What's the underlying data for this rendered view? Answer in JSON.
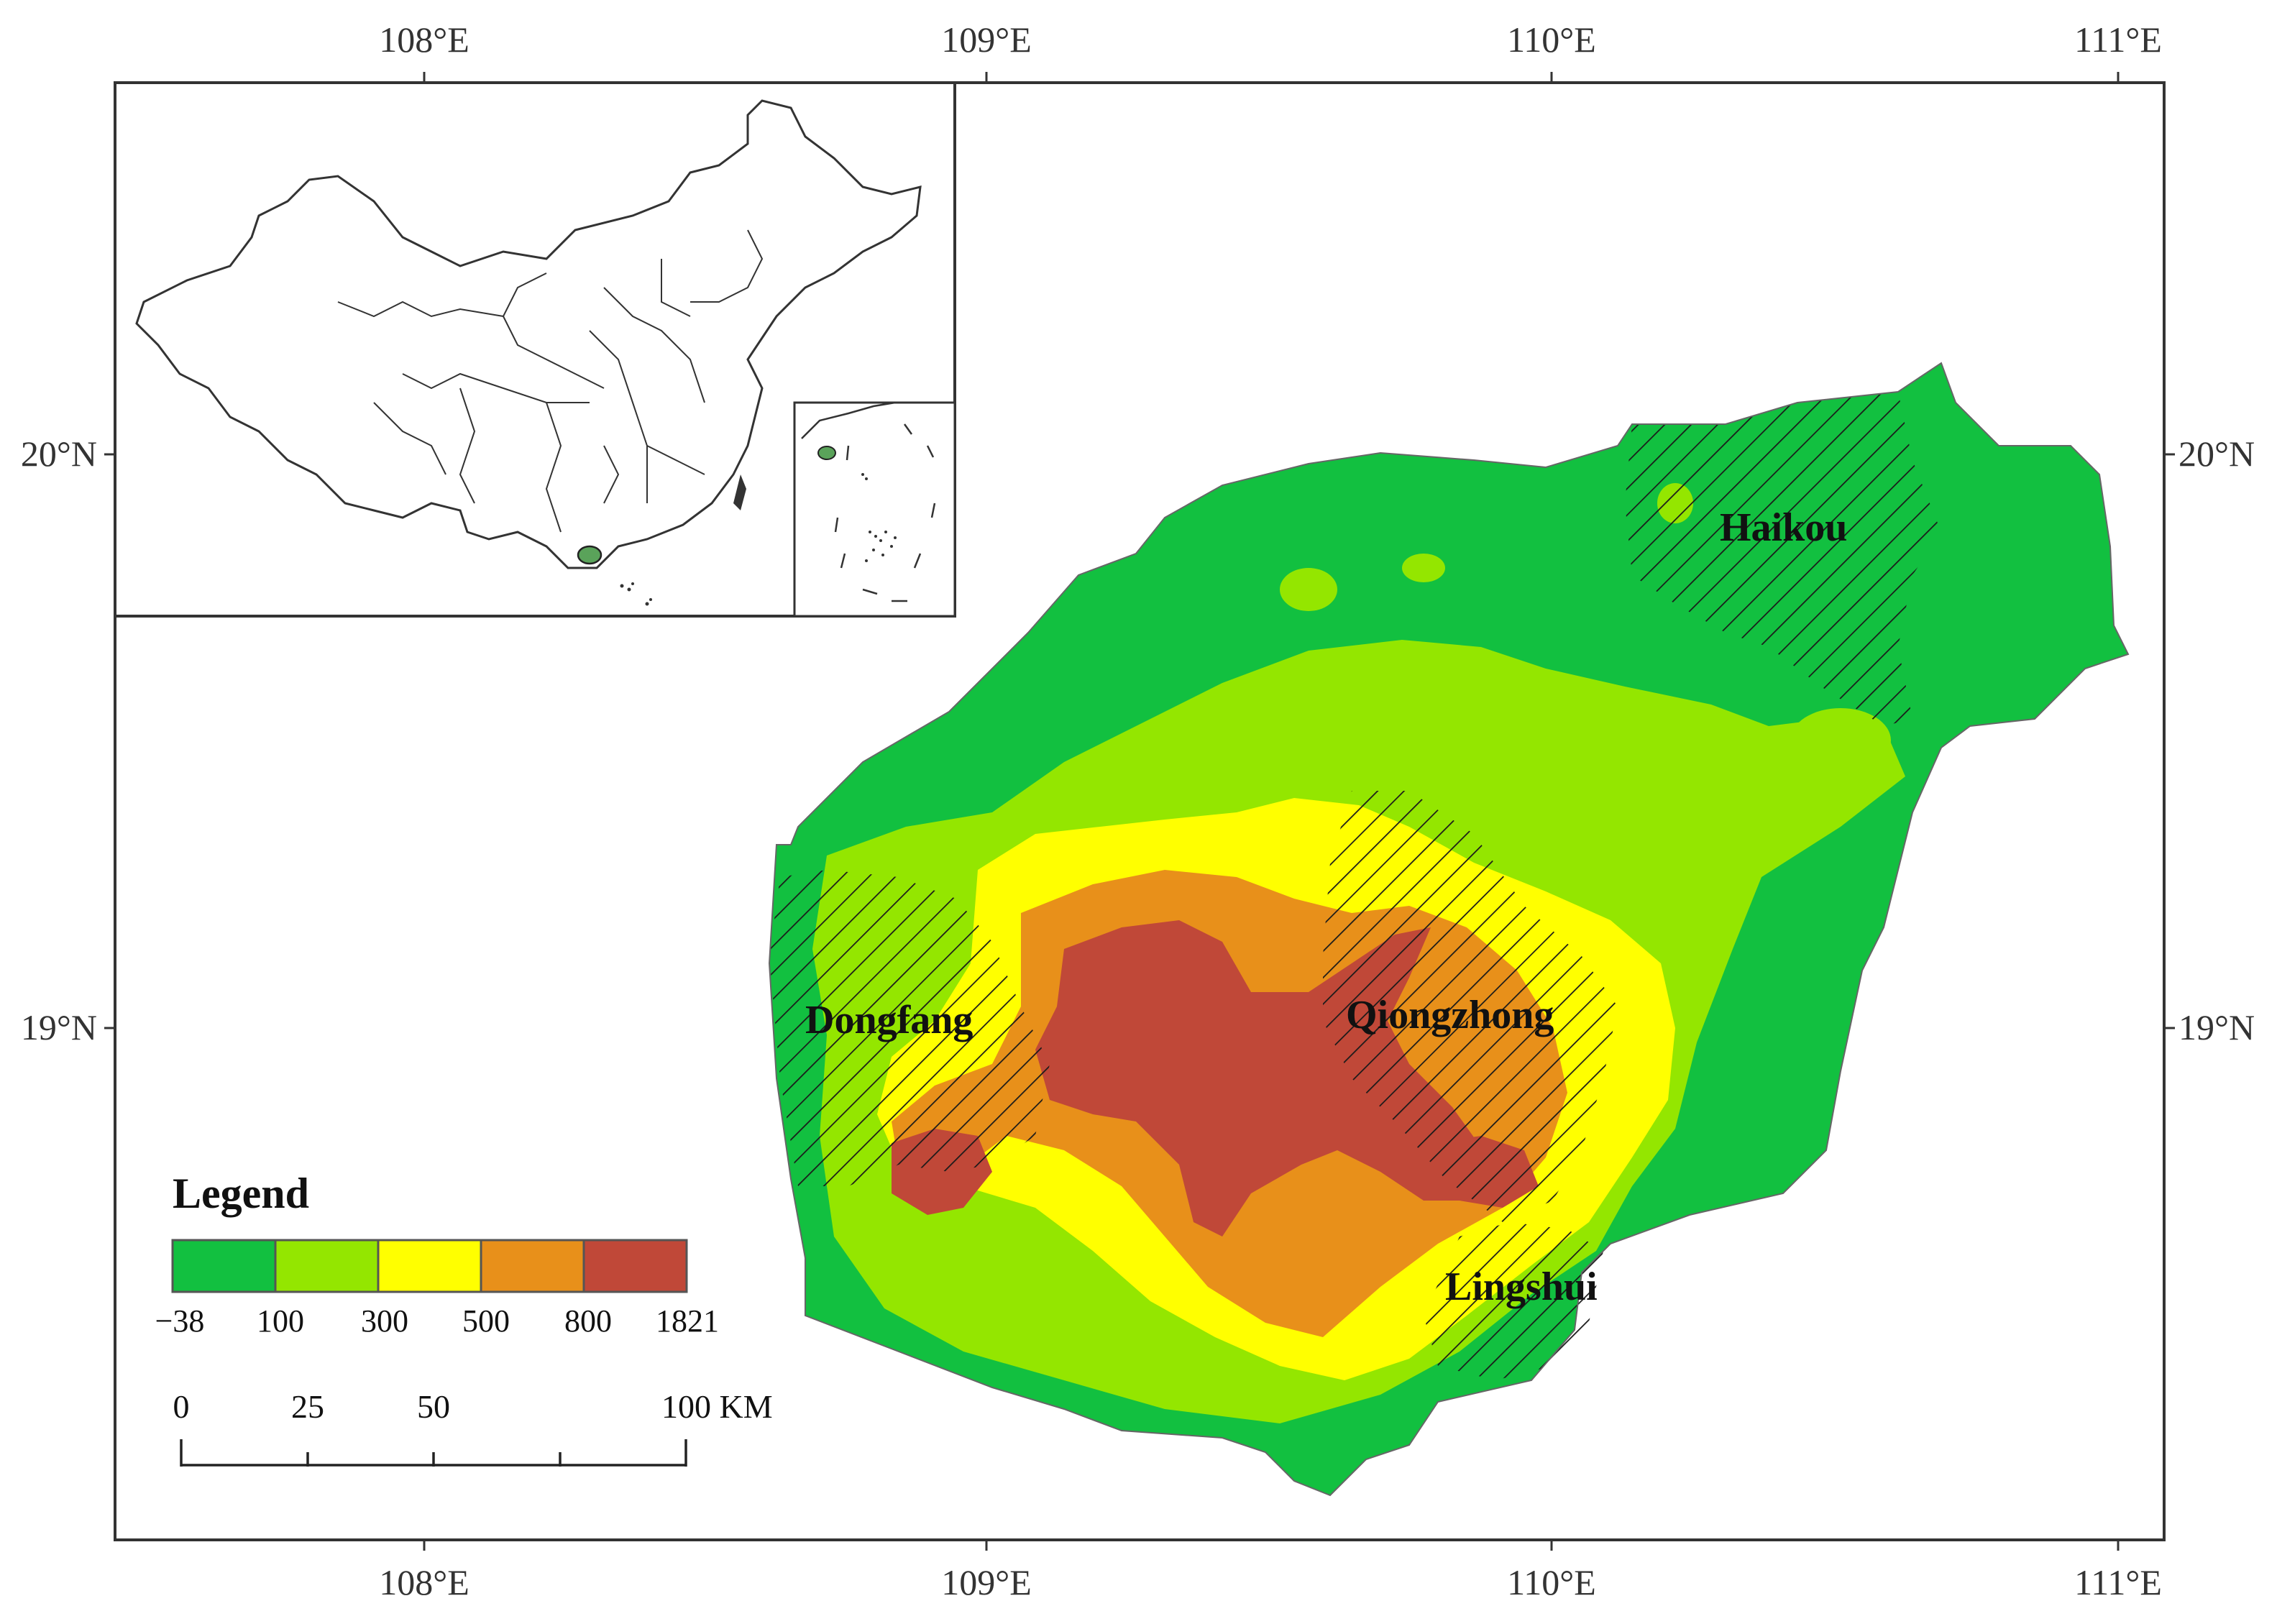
{
  "graticule": {
    "lon_labels": [
      "108°E",
      "109°E",
      "110°E",
      "111°E"
    ],
    "lat_labels": [
      "20°N",
      "19°N"
    ]
  },
  "cities": [
    {
      "name": "Haikou"
    },
    {
      "name": "Dongfang"
    },
    {
      "name": "Qiongzhong"
    },
    {
      "name": "Lingshui"
    }
  ],
  "legend": {
    "title": "Legend",
    "classes": [
      {
        "from": "−38",
        "to": "100",
        "color": "#12c040"
      },
      {
        "from": "100",
        "to": "300",
        "color": "#94e600"
      },
      {
        "from": "300",
        "to": "500",
        "color": "#ffff00"
      },
      {
        "from": "500",
        "to": "800",
        "color": "#e8901a"
      },
      {
        "from": "800",
        "to": "1821",
        "color": "#c04838"
      }
    ],
    "break_labels": [
      "−38",
      "100",
      "300",
      "500",
      "800",
      "1821"
    ]
  },
  "scale_bar": {
    "labels": [
      "0",
      "25",
      "50",
      "100 KM"
    ]
  },
  "colors": {
    "frame": "#333333",
    "hatch": "#1a1a1a",
    "inset_highlight": "#5aa35a"
  }
}
